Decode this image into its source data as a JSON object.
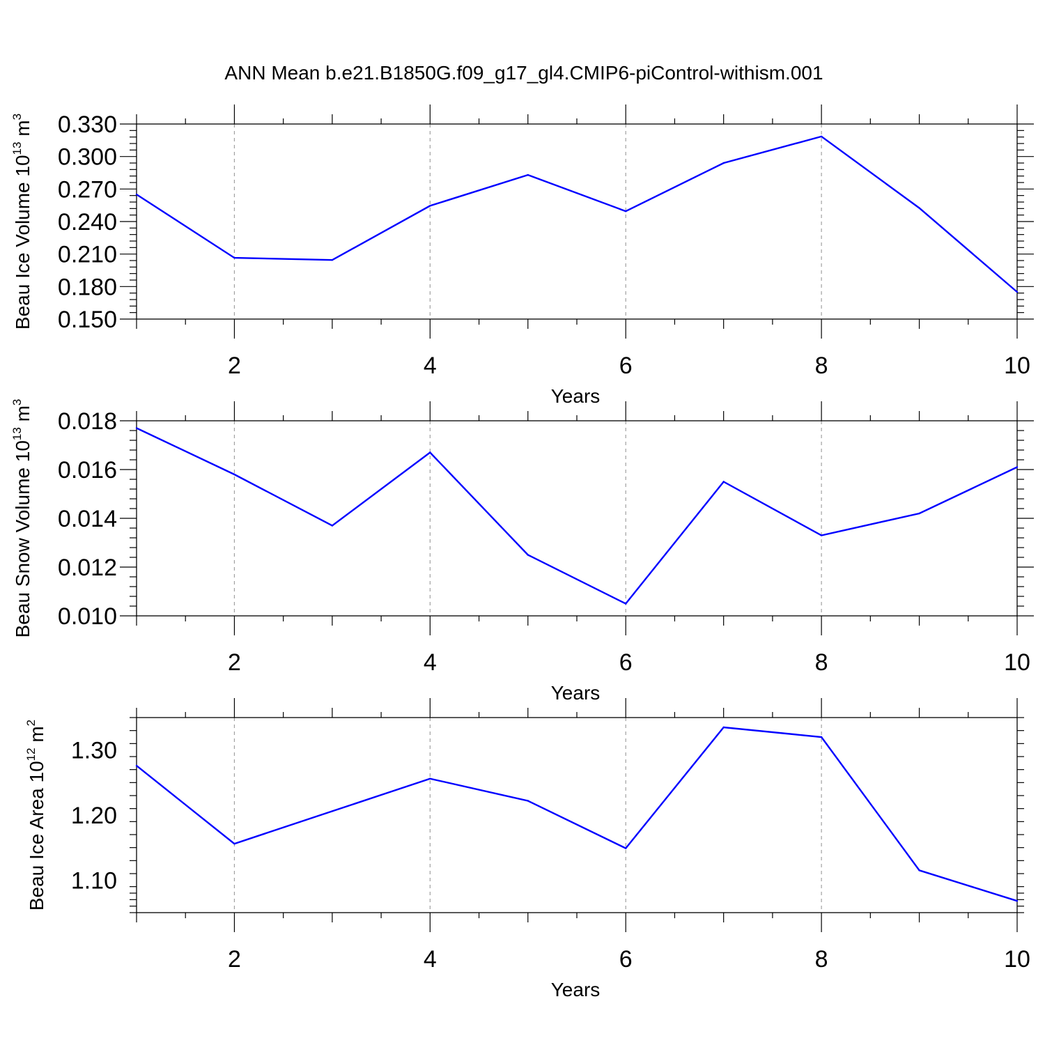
{
  "figure": {
    "title": "ANN Mean b.e21.B1850G.f09_g17_gl4.CMIP6-piControl-withism.001"
  },
  "colors": {
    "line": "#0000ff",
    "axis": "#000000",
    "grid": "#a0a0a0"
  },
  "chart_data": [
    {
      "type": "line",
      "title": "",
      "xlabel": "Years",
      "ylabel": {
        "prefix": "Beau Ice Volume 10",
        "exp": "13",
        "unit": " m",
        "unit_exp": "3"
      },
      "xlim": [
        1,
        10
      ],
      "ylim": [
        0.15,
        0.33
      ],
      "x_ticks": [
        2,
        4,
        6,
        8,
        10
      ],
      "y_ticks": [
        0.15,
        0.18,
        0.21,
        0.24,
        0.27,
        0.3,
        0.33
      ],
      "y_tick_labels": [
        "0.150",
        "0.180",
        "0.210",
        "0.240",
        "0.270",
        "0.300",
        "0.330"
      ],
      "grid": "vertical dashed at major x ticks",
      "x": [
        1,
        2,
        3,
        4,
        5,
        6,
        7,
        8,
        9,
        10
      ],
      "series": [
        {
          "values": [
            0.265,
            0.2065,
            0.2045,
            0.2545,
            0.283,
            0.2495,
            0.294,
            0.3185,
            0.2525,
            0.175
          ]
        }
      ]
    },
    {
      "type": "line",
      "title": "",
      "xlabel": "Years",
      "ylabel": {
        "prefix": "Beau Snow Volume 10",
        "exp": "13",
        "unit": " m",
        "unit_exp": "3"
      },
      "xlim": [
        1,
        10
      ],
      "ylim": [
        0.01,
        0.018
      ],
      "x_ticks": [
        2,
        4,
        6,
        8,
        10
      ],
      "y_ticks": [
        0.01,
        0.012,
        0.014,
        0.016,
        0.018
      ],
      "y_tick_labels": [
        "0.010",
        "0.012",
        "0.014",
        "0.016",
        "0.018"
      ],
      "grid": "vertical dashed at major x ticks",
      "x": [
        1,
        2,
        3,
        4,
        5,
        6,
        7,
        8,
        9,
        10
      ],
      "series": [
        {
          "values": [
            0.0177,
            0.0158,
            0.0137,
            0.0167,
            0.0125,
            0.0105,
            0.0155,
            0.0133,
            0.0142,
            0.0161
          ]
        }
      ]
    },
    {
      "type": "line",
      "title": "",
      "xlabel": "Years",
      "ylabel": {
        "prefix": "Beau Ice Area 10",
        "exp": "12",
        "unit": " m",
        "unit_exp": "2"
      },
      "xlim": [
        1,
        10
      ],
      "ylim": [
        1.05,
        1.35
      ],
      "x_ticks": [
        2,
        4,
        6,
        8,
        10
      ],
      "y_ticks": [
        1.1,
        1.2,
        1.3
      ],
      "y_tick_labels": [
        "1.10",
        "1.20",
        "1.30"
      ],
      "grid": "vertical dashed at major x ticks",
      "x": [
        1,
        2,
        3,
        4,
        5,
        6,
        7,
        8,
        9,
        10
      ],
      "series": [
        {
          "values": [
            1.276,
            1.156,
            1.206,
            1.256,
            1.222,
            1.149,
            1.335,
            1.32,
            1.115,
            1.068
          ]
        }
      ]
    }
  ]
}
